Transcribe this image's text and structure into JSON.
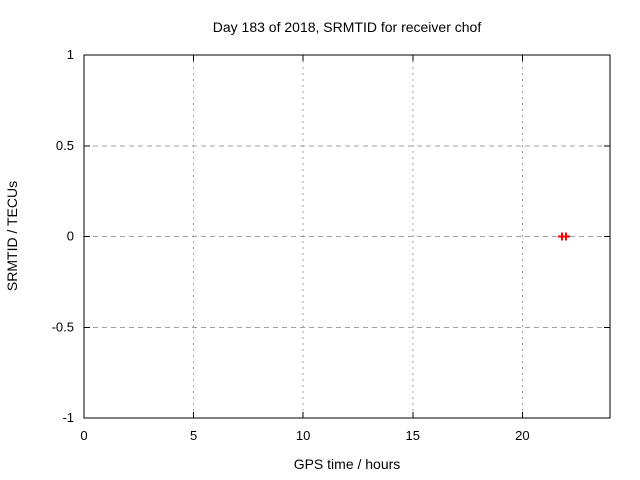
{
  "chart_data": {
    "type": "scatter",
    "title": "Day 183 of 2018, SRMTID for receiver chof",
    "xlabel": "GPS time / hours",
    "ylabel": "SRMTID / TECUs",
    "xlim": [
      0,
      24
    ],
    "ylim": [
      -1,
      1
    ],
    "xticks": [
      0,
      5,
      10,
      15,
      20
    ],
    "yticks": [
      -1,
      -0.5,
      0,
      0.5,
      1
    ],
    "grid": true,
    "legend": "none",
    "series": [
      {
        "marker": "plus",
        "color": "#ff0000",
        "points": [
          [
            21.8,
            0.0
          ],
          [
            22.0,
            0.0
          ]
        ]
      }
    ],
    "colors": {
      "background": "#ffffff",
      "border": "#000000",
      "grid": "#a0a0a0",
      "text": "#000000"
    }
  }
}
